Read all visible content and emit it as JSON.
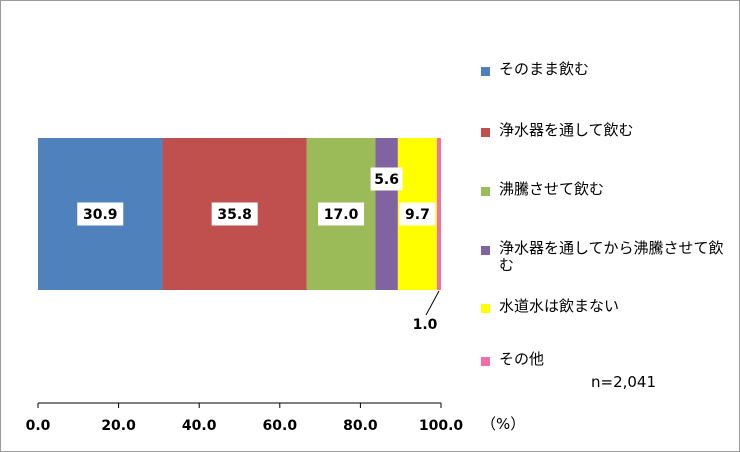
{
  "chart_data": {
    "type": "bar",
    "orientation": "horizontal-stacked",
    "series": [
      {
        "name": "そのまま飲む",
        "value": 30.9,
        "label": "30.9",
        "color": "#4f81bd"
      },
      {
        "name": "浄水器を通して飲む",
        "value": 35.8,
        "label": "35.8",
        "color": "#c0504d"
      },
      {
        "name": "沸騰させて飲む",
        "value": 17.0,
        "label": "17.0",
        "color": "#9bbb59"
      },
      {
        "name": "浄水器を通してから沸騰させて飲む",
        "value": 5.6,
        "label": "5.6",
        "color": "#8064a2"
      },
      {
        "name": "水道水は飲まない",
        "value": 9.7,
        "label": "9.7",
        "color": "#ffff00"
      },
      {
        "name": "その他",
        "value": 1.0,
        "label": "1.0",
        "color": "#f06eaa"
      }
    ],
    "xlim": [
      0,
      100
    ],
    "xticks": [
      "0.0",
      "20.0",
      "40.0",
      "60.0",
      "80.0",
      "100.0"
    ],
    "unit_label": "（%）",
    "sample_note": "n=2,041",
    "legend_position": "right"
  }
}
